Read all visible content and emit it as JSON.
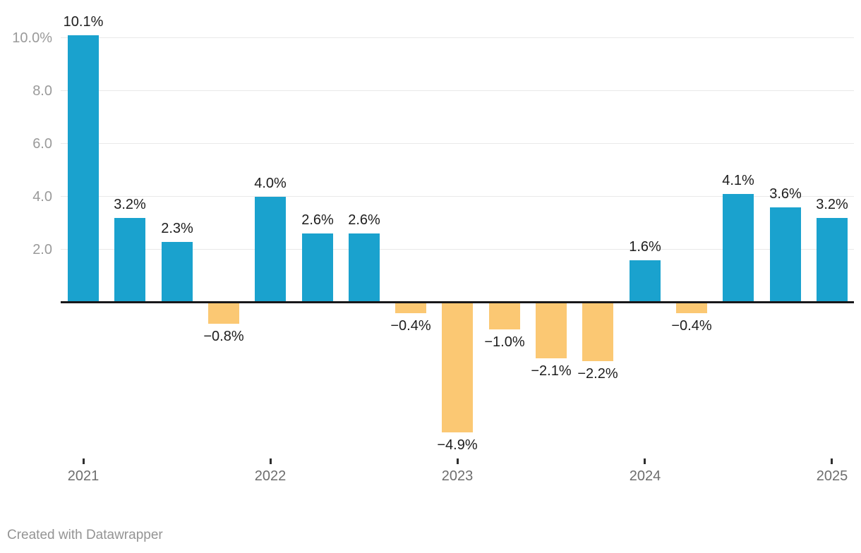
{
  "footer": {
    "credit": "Created with Datawrapper"
  },
  "colors": {
    "positive_bar": "#1AA2CE",
    "negative_bar": "#FBC873",
    "gridline": "#e9e9e9",
    "axis_line": "#18181a",
    "y_label": "#9a9a9a",
    "x_label": "#6e6e6e",
    "value_label": "#1d1d1d",
    "credit": "#949494"
  },
  "chart_data": {
    "type": "bar",
    "title": "",
    "xlabel": "",
    "ylabel": "",
    "grid": true,
    "legend": "none",
    "ylim": [
      -5.5,
      10.5
    ],
    "x_unit": "quarters",
    "categories": [
      "2021",
      "2021",
      "2021",
      "2021",
      "2022",
      "2022",
      "2022",
      "2022",
      "2023",
      "2023",
      "2023",
      "2023",
      "2024",
      "2024",
      "2024",
      "2024",
      "2025"
    ],
    "values": [
      10.1,
      3.2,
      2.3,
      -0.8,
      4.0,
      2.6,
      2.6,
      -0.4,
      -4.9,
      -1.0,
      -2.1,
      -2.2,
      1.6,
      -0.4,
      4.1,
      3.6,
      3.2
    ],
    "value_labels": [
      "10.1%",
      "3.2%",
      "2.3%",
      "−0.8%",
      "4.0%",
      "2.6%",
      "2.6%",
      "−0.4%",
      "−4.9%",
      "−1.0%",
      "−2.1%",
      "−2.2%",
      "1.6%",
      "−0.4%",
      "4.1%",
      "3.6%",
      "3.2%"
    ],
    "y_ticks": [
      {
        "value": 10,
        "label": "10.0%"
      },
      {
        "value": 8,
        "label": "8.0"
      },
      {
        "value": 6,
        "label": "6.0"
      },
      {
        "value": 4,
        "label": "4.0"
      },
      {
        "value": 2,
        "label": "2.0"
      }
    ],
    "x_ticks": [
      {
        "bar_index": 0,
        "label": "2021"
      },
      {
        "bar_index": 4,
        "label": "2022"
      },
      {
        "bar_index": 8,
        "label": "2023"
      },
      {
        "bar_index": 12,
        "label": "2024"
      },
      {
        "bar_index": 16,
        "label": "2025"
      }
    ]
  }
}
